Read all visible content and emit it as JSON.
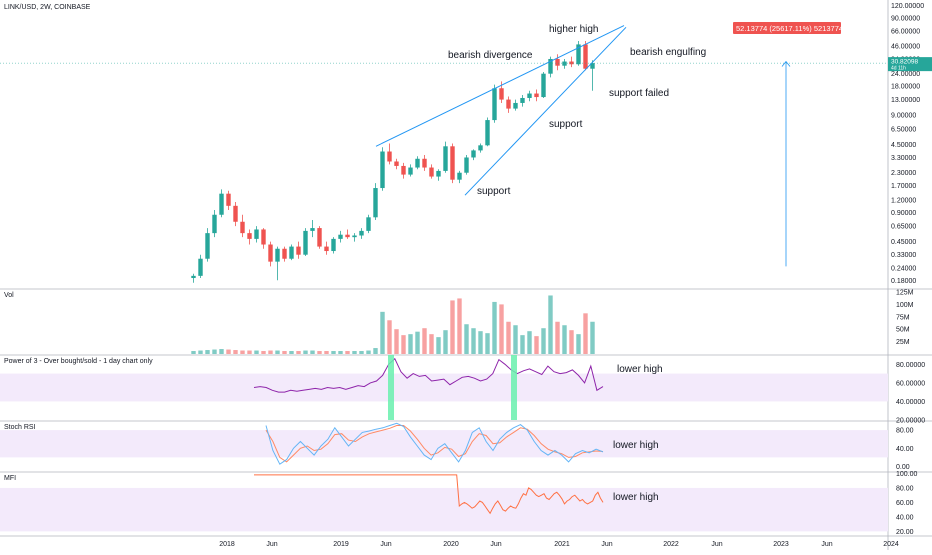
{
  "chart_data": {
    "type": "candlestick",
    "title": "LINK/USD, 2W, COINBASE",
    "price_scale": "log",
    "price_ticks": [
      "120.00000",
      "90.00000",
      "66.00000",
      "46.00000",
      "34.00000",
      "24.00000",
      "18.00000",
      "13.00000",
      "9.00000",
      "6.50000",
      "4.50000",
      "3.30000",
      "2.30000",
      "1.70000",
      "1.20000",
      "0.90000",
      "0.65000",
      "0.45000",
      "0.33000",
      "0.24000",
      "0.18000"
    ],
    "last_price": {
      "value": "30.82098",
      "sub": "4d 11h",
      "color": "#26a69a"
    },
    "measure_label": {
      "text": "52.13774 (25617.11%) 5213774",
      "color": "#ef5350"
    },
    "annotations": [
      "higher high",
      "bearish divergence",
      "bearish engulfing",
      "support failed",
      "support",
      "support"
    ],
    "x_ticks": [
      "2018",
      "Jun",
      "2019",
      "Jun",
      "2020",
      "Jun",
      "2021",
      "Jun",
      "2022",
      "Jun",
      "2023",
      "Jun",
      "2024"
    ],
    "colors": {
      "up": "#26a69a",
      "down": "#ef5350",
      "vol_up": "#80cbc4",
      "vol_down": "#f7a1a1",
      "trendline": "#2196f3",
      "power3": "#8e24aa",
      "stoch_k": "#64b5f6",
      "stoch_d": "#ff8a65",
      "mfi": "#ff7043",
      "band": "#f3eafb",
      "highlight": "#69f0ae"
    },
    "candles": [
      [
        0.19,
        0.21,
        0.17,
        0.2
      ],
      [
        0.2,
        0.33,
        0.19,
        0.3
      ],
      [
        0.3,
        0.62,
        0.28,
        0.55
      ],
      [
        0.55,
        0.95,
        0.5,
        0.85
      ],
      [
        0.85,
        1.55,
        0.8,
        1.4
      ],
      [
        1.4,
        1.5,
        0.95,
        1.05
      ],
      [
        1.05,
        1.15,
        0.65,
        0.72
      ],
      [
        0.72,
        0.85,
        0.5,
        0.55
      ],
      [
        0.55,
        0.6,
        0.42,
        0.48
      ],
      [
        0.48,
        0.65,
        0.44,
        0.6
      ],
      [
        0.6,
        0.62,
        0.38,
        0.42
      ],
      [
        0.42,
        0.45,
        0.25,
        0.28
      ],
      [
        0.28,
        0.4,
        0.18,
        0.38
      ],
      [
        0.38,
        0.4,
        0.28,
        0.3
      ],
      [
        0.3,
        0.42,
        0.29,
        0.4
      ],
      [
        0.4,
        0.45,
        0.3,
        0.33
      ],
      [
        0.33,
        0.62,
        0.32,
        0.58
      ],
      [
        0.58,
        0.75,
        0.5,
        0.62
      ],
      [
        0.62,
        0.65,
        0.38,
        0.4
      ],
      [
        0.4,
        0.45,
        0.33,
        0.36
      ],
      [
        0.36,
        0.5,
        0.34,
        0.48
      ],
      [
        0.48,
        0.58,
        0.44,
        0.53
      ],
      [
        0.53,
        0.6,
        0.48,
        0.5
      ],
      [
        0.5,
        0.55,
        0.45,
        0.52
      ],
      [
        0.52,
        0.62,
        0.48,
        0.58
      ],
      [
        0.58,
        0.85,
        0.55,
        0.8
      ],
      [
        0.8,
        1.8,
        0.75,
        1.6
      ],
      [
        1.6,
        4.2,
        1.5,
        3.8
      ],
      [
        3.8,
        4.6,
        2.8,
        3.0
      ],
      [
        3.0,
        3.2,
        2.5,
        2.7
      ],
      [
        2.7,
        2.9,
        2.0,
        2.2
      ],
      [
        2.2,
        2.8,
        2.1,
        2.6
      ],
      [
        2.6,
        3.4,
        2.5,
        3.2
      ],
      [
        3.2,
        3.5,
        2.4,
        2.6
      ],
      [
        2.6,
        2.8,
        2.0,
        2.1
      ],
      [
        2.1,
        2.5,
        1.9,
        2.4
      ],
      [
        2.4,
        4.8,
        2.3,
        4.3
      ],
      [
        4.3,
        4.6,
        1.8,
        1.95
      ],
      [
        1.95,
        2.4,
        1.8,
        2.3
      ],
      [
        2.3,
        3.5,
        2.2,
        3.3
      ],
      [
        3.3,
        4.0,
        3.1,
        3.9
      ],
      [
        3.9,
        4.6,
        3.7,
        4.4
      ],
      [
        4.4,
        8.5,
        4.3,
        8.0
      ],
      [
        8.0,
        18.5,
        7.5,
        17.0
      ],
      [
        17.0,
        20.0,
        12.0,
        13.0
      ],
      [
        13.0,
        14.0,
        9.5,
        10.5
      ],
      [
        10.5,
        13.0,
        10.0,
        12.0
      ],
      [
        12.0,
        14.5,
        11.0,
        13.5
      ],
      [
        13.5,
        16.0,
        12.5,
        15.0
      ],
      [
        15.0,
        16.5,
        12.5,
        13.8
      ],
      [
        13.8,
        25.0,
        13.5,
        24.0
      ],
      [
        24.0,
        36.0,
        22.0,
        34.0
      ],
      [
        34.0,
        38.0,
        26.0,
        29.0
      ],
      [
        29.0,
        34.0,
        27.0,
        32.0
      ],
      [
        32.0,
        36.0,
        28.0,
        30.0
      ],
      [
        30.0,
        52.0,
        29.0,
        48.0
      ],
      [
        48.0,
        52.0,
        26.0,
        27.0
      ],
      [
        27.0,
        33.0,
        16.0,
        30.82
      ]
    ],
    "volume": [
      [
        6,
        1
      ],
      [
        7,
        1
      ],
      [
        8,
        1
      ],
      [
        9,
        1
      ],
      [
        10,
        1
      ],
      [
        9,
        0
      ],
      [
        8,
        0
      ],
      [
        7,
        0
      ],
      [
        7,
        0
      ],
      [
        7,
        1
      ],
      [
        6,
        0
      ],
      [
        7,
        0
      ],
      [
        7,
        1
      ],
      [
        6,
        0
      ],
      [
        6,
        1
      ],
      [
        6,
        0
      ],
      [
        7,
        1
      ],
      [
        7,
        1
      ],
      [
        6,
        0
      ],
      [
        6,
        0
      ],
      [
        6,
        1
      ],
      [
        6,
        1
      ],
      [
        6,
        0
      ],
      [
        6,
        1
      ],
      [
        6,
        1
      ],
      [
        7,
        1
      ],
      [
        12,
        1
      ],
      [
        85,
        1
      ],
      [
        68,
        0
      ],
      [
        50,
        0
      ],
      [
        38,
        0
      ],
      [
        40,
        1
      ],
      [
        45,
        1
      ],
      [
        52,
        0
      ],
      [
        40,
        0
      ],
      [
        34,
        1
      ],
      [
        48,
        1
      ],
      [
        108,
        0
      ],
      [
        112,
        0
      ],
      [
        60,
        1
      ],
      [
        52,
        1
      ],
      [
        46,
        1
      ],
      [
        42,
        1
      ],
      [
        105,
        1
      ],
      [
        100,
        0
      ],
      [
        65,
        0
      ],
      [
        58,
        1
      ],
      [
        38,
        1
      ],
      [
        46,
        1
      ],
      [
        36,
        0
      ],
      [
        52,
        1
      ],
      [
        118,
        1
      ],
      [
        65,
        0
      ],
      [
        58,
        1
      ],
      [
        48,
        0
      ],
      [
        40,
        1
      ],
      [
        82,
        0
      ],
      [
        65,
        1
      ]
    ],
    "power_of_3": {
      "title": "Power of 3 - Over bought/sold - 1 day chart only",
      "ticks": [
        "80.00000",
        "60.00000",
        "40.00000",
        "20.00000"
      ],
      "band": [
        40,
        70
      ],
      "ylim": [
        20,
        90
      ],
      "annotation": "lower high",
      "values": [
        55,
        56,
        55,
        52,
        50,
        50,
        52,
        51,
        52,
        53,
        54,
        53,
        55,
        54,
        55,
        53,
        55,
        57,
        56,
        60,
        62,
        68,
        80,
        86,
        72,
        65,
        70,
        67,
        68,
        62,
        63,
        64,
        58,
        62,
        66,
        67,
        65,
        62,
        64,
        70,
        85,
        80,
        74,
        70,
        73,
        75,
        72,
        69,
        78,
        72,
        70,
        71,
        74,
        68,
        60,
        78,
        52,
        56
      ]
    },
    "stoch_rsi": {
      "title": "Stoch RSI",
      "ticks": [
        "80.00",
        "40.00",
        "0.00"
      ],
      "band": [
        20,
        80
      ],
      "ylim": [
        -10,
        100
      ],
      "annotation": "lower high",
      "k": [
        90,
        35,
        5,
        15,
        40,
        55,
        40,
        25,
        45,
        60,
        85,
        65,
        45,
        60,
        75,
        78,
        82,
        85,
        90,
        95,
        88,
        65,
        45,
        25,
        15,
        40,
        50,
        30,
        10,
        35,
        75,
        85,
        55,
        35,
        60,
        75,
        85,
        92,
        80,
        55,
        35,
        25,
        35,
        25,
        10,
        28,
        35,
        30,
        38,
        32
      ],
      "d": [
        80,
        55,
        20,
        10,
        25,
        40,
        45,
        35,
        38,
        50,
        70,
        72,
        58,
        55,
        65,
        72,
        76,
        80,
        84,
        90,
        90,
        78,
        60,
        40,
        25,
        30,
        42,
        38,
        22,
        28,
        55,
        72,
        68,
        50,
        52,
        65,
        75,
        85,
        82,
        68,
        50,
        38,
        32,
        28,
        20,
        22,
        30,
        32,
        34,
        33
      ]
    },
    "mfi": {
      "title": "MFI",
      "ticks": [
        "100.00",
        "80.00",
        "60.00",
        "40.00",
        "20.00"
      ],
      "band": [
        20,
        80
      ],
      "ylim": [
        15,
        102
      ],
      "annotation": "lower high",
      "values": [
        98,
        98,
        98,
        98,
        98,
        98,
        98,
        98,
        98,
        98,
        98,
        98,
        98,
        98,
        98,
        98,
        98,
        98,
        98,
        98,
        98,
        98,
        98,
        98,
        98,
        98,
        98,
        98,
        98,
        98,
        98,
        98,
        98,
        98,
        98,
        98,
        98,
        98,
        98,
        98,
        98,
        98,
        98,
        98,
        98,
        98,
        98,
        98,
        98,
        98,
        98,
        98,
        98,
        98,
        98,
        98,
        98,
        98,
        98,
        98,
        98,
        98,
        98,
        98,
        98,
        98,
        98,
        98,
        98,
        98,
        98,
        98,
        98,
        98,
        98,
        98,
        98,
        98,
        98,
        98,
        55,
        58,
        60,
        58,
        55,
        52,
        54,
        58,
        62,
        60,
        55,
        50,
        45,
        52,
        58,
        62,
        56,
        50,
        48,
        52,
        55,
        53,
        52,
        58,
        66,
        72,
        70,
        80,
        78,
        74,
        70,
        68,
        70,
        72,
        66,
        64,
        68,
        72,
        74,
        70,
        65,
        58,
        62,
        64,
        68,
        70,
        66,
        62,
        64,
        60,
        58,
        60,
        62,
        70,
        74,
        66,
        60
      ]
    }
  }
}
